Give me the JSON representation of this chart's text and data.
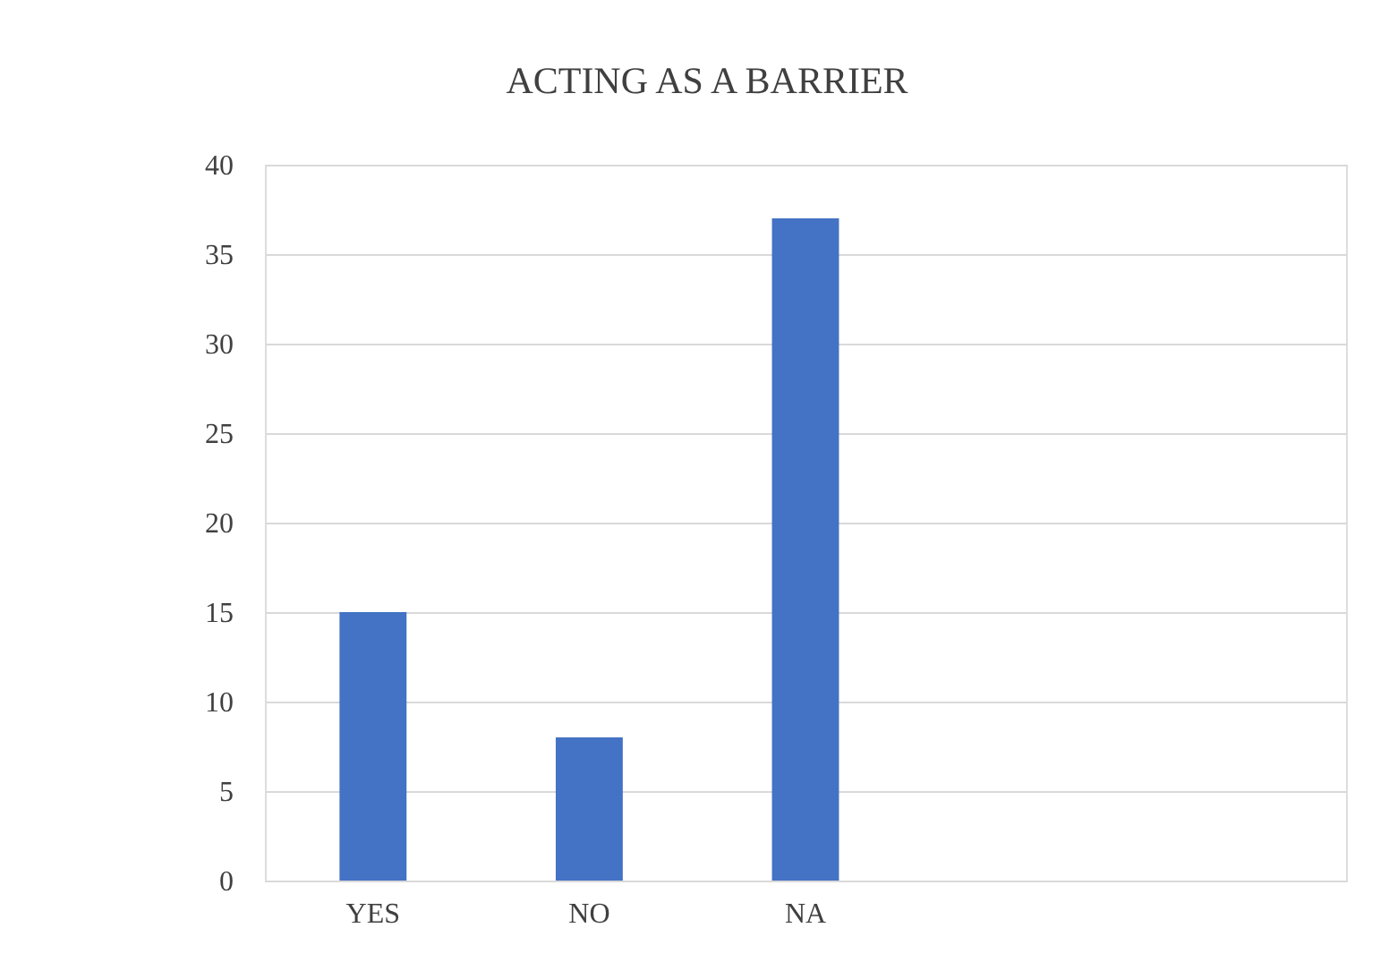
{
  "chart_data": {
    "type": "bar",
    "title": "ACTING AS A BARRIER",
    "categories": [
      "YES",
      "NO",
      "NA",
      null,
      null
    ],
    "values": [
      15,
      8,
      37,
      null,
      null
    ],
    "color": "#4472c4",
    "ylim": [
      0,
      40
    ],
    "yticks": [
      0,
      5,
      10,
      15,
      20,
      25,
      30,
      35,
      40
    ],
    "grid": "y"
  }
}
